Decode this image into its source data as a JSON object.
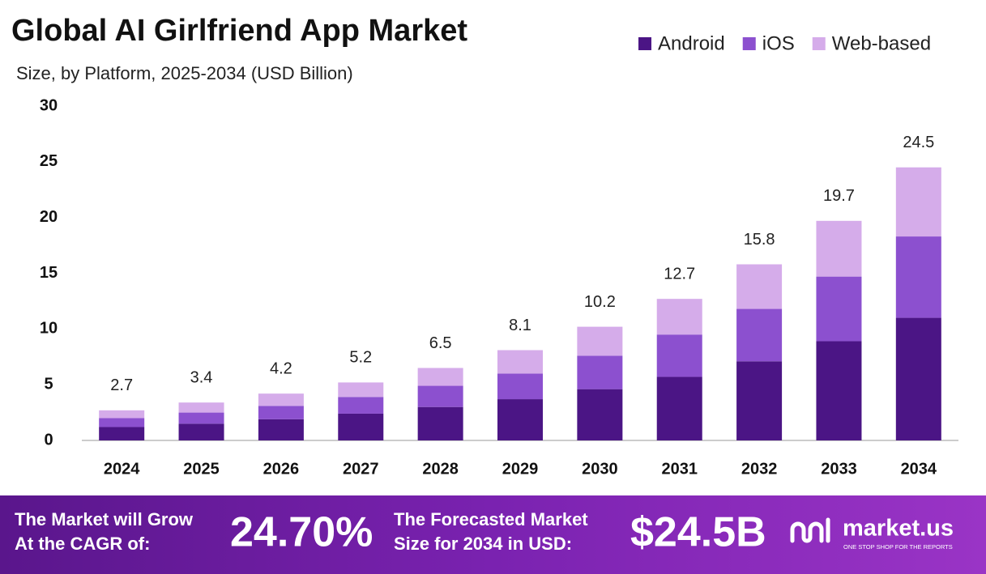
{
  "chart_data": {
    "type": "stacked-bar",
    "title": "Global AI Girlfriend App Market",
    "subtitle": "Size, by Platform, 2025-2034 (USD Billion)",
    "categories": [
      "2024",
      "2025",
      "2026",
      "2027",
      "2028",
      "2029",
      "2030",
      "2031",
      "2032",
      "2033",
      "2034"
    ],
    "series": [
      {
        "name": "Android",
        "color": "#4b1585",
        "values": [
          1.2,
          1.5,
          1.9,
          2.4,
          3.0,
          3.7,
          4.6,
          5.7,
          7.1,
          8.9,
          11.0
        ]
      },
      {
        "name": "iOS",
        "color": "#8c50cf",
        "values": [
          0.8,
          1.0,
          1.2,
          1.5,
          1.9,
          2.3,
          3.0,
          3.8,
          4.7,
          5.8,
          7.3
        ]
      },
      {
        "name": "Web-based",
        "color": "#d5acea",
        "values": [
          0.7,
          0.9,
          1.1,
          1.3,
          1.6,
          2.1,
          2.6,
          3.2,
          4.0,
          5.0,
          6.2
        ]
      }
    ],
    "totals": [
      2.7,
      3.4,
      4.2,
      5.2,
      6.5,
      8.1,
      10.2,
      12.7,
      15.8,
      19.7,
      24.5
    ],
    "ylim": [
      0,
      30
    ],
    "yticks": [
      0,
      5,
      10,
      15,
      20,
      25,
      30
    ],
    "grid": false,
    "legend": "top-right"
  },
  "footer": {
    "cagr_label": [
      "The Market will Grow",
      "At the CAGR of:"
    ],
    "cagr_value": "24.70%",
    "forecast_label": [
      "The Forecasted Market",
      "Size for 2034 in USD:"
    ],
    "forecast_value": "$24.5B",
    "brand": "market.us",
    "tagline": "ONE STOP SHOP FOR THE REPORTS"
  }
}
